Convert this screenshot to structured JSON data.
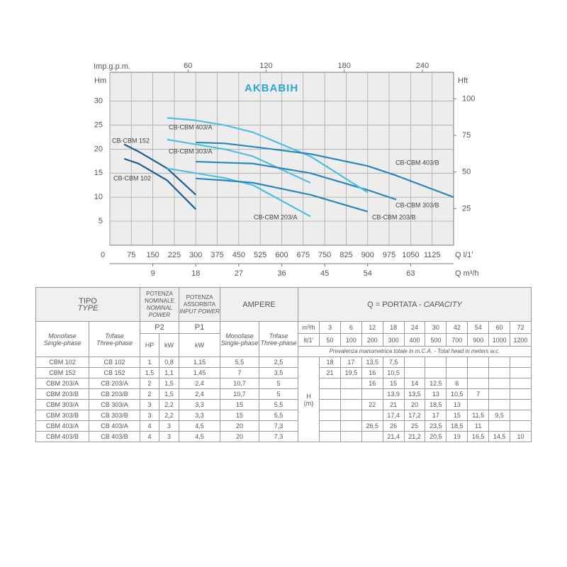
{
  "logo": "AKBABIH",
  "chart_data": {
    "type": "line",
    "x_label": "Q l/1'",
    "x3_label": "Q m³/h",
    "x2_label": "Imp.g.p.m.",
    "y_label": "Hm",
    "y2_label": "Hft",
    "xlim": [
      0,
      1200
    ],
    "xticks": [
      0,
      75,
      150,
      225,
      300,
      375,
      450,
      525,
      600,
      675,
      750,
      825,
      900,
      975,
      1050,
      1125
    ],
    "x2lim": [
      0,
      264
    ],
    "x2ticks": [
      60,
      120,
      180,
      240
    ],
    "x3lim": [
      0,
      72
    ],
    "x3ticks": [
      9,
      18,
      27,
      36,
      45,
      54,
      63
    ],
    "ylim": [
      0,
      36
    ],
    "yticks": [
      5,
      10,
      15,
      20,
      25,
      30
    ],
    "y2lim": [
      0,
      118.1
    ],
    "y2ticks": [
      25,
      50,
      75,
      100
    ],
    "grid": true,
    "series": [
      {
        "name": "CB-CBM 102",
        "color": "#1d5f8e",
        "x": [
          50,
          100,
          200,
          300
        ],
        "values": [
          18,
          17,
          13.5,
          7.5
        ]
      },
      {
        "name": "CB-CBM 152",
        "color": "#1d5f8e",
        "x": [
          50,
          100,
          200,
          300
        ],
        "values": [
          21,
          19.5,
          16,
          10.5
        ]
      },
      {
        "name": "CB-CBM 203/A",
        "color": "#4fc0de",
        "x": [
          200,
          300,
          400,
          500,
          700
        ],
        "values": [
          16,
          15,
          14,
          12.5,
          6
        ]
      },
      {
        "name": "CB-CBM 203/B",
        "color": "#2b87bb",
        "x": [
          300,
          400,
          500,
          700,
          900
        ],
        "values": [
          13.9,
          13.5,
          13,
          10.5,
          7
        ]
      },
      {
        "name": "CB-CBM 303/A",
        "color": "#4fc0de",
        "x": [
          200,
          300,
          400,
          500,
          700
        ],
        "values": [
          22,
          21,
          20,
          18.5,
          13
        ]
      },
      {
        "name": "CB-CBM 303/B",
        "color": "#2b87bb",
        "x": [
          300,
          400,
          500,
          700,
          900,
          1000
        ],
        "values": [
          17.4,
          17.2,
          17,
          15,
          11.5,
          9.5
        ]
      },
      {
        "name": "CB-CBM 403/A",
        "color": "#4fc0de",
        "x": [
          200,
          300,
          400,
          500,
          700,
          900
        ],
        "values": [
          26.5,
          26,
          25,
          23.5,
          18.5,
          11
        ]
      },
      {
        "name": "CB-CBM 403/B",
        "color": "#2b87bb",
        "x": [
          300,
          400,
          500,
          700,
          900,
          1000,
          1200
        ],
        "values": [
          21.4,
          21.2,
          20.5,
          19,
          16.5,
          14.5,
          10
        ]
      }
    ]
  },
  "table": {
    "header": {
      "tipo": "TIPO",
      "type": "TYPE",
      "nominal_it": "POTENZA NOMINALE",
      "nominal_en": "NOMINAL POWER",
      "input_it": "POTENZA ASSORBITA",
      "input_en": "INPUT POWER",
      "ampere": "AMPERE",
      "capacity_it": "Q = PORTATA -",
      "capacity_en": "CAPACITY",
      "p2": "P2",
      "p1": "P1",
      "mono_it": "Monofase",
      "mono_en": "Single-phase",
      "tri_it": "Trifase",
      "tri_en": "Three-phase",
      "hp": "HP",
      "kw": "kW",
      "m3h": "m³/h",
      "lmin": "lt/1'",
      "head_note": "Prevalenza manometrica totale in m.C.A. - Total head in meters w.c.",
      "h": "H",
      "h_unit": "(m)"
    },
    "flow_m3h": [
      3,
      6,
      12,
      18,
      24,
      30,
      42,
      54,
      60,
      72
    ],
    "flow_lmin": [
      50,
      100,
      200,
      300,
      400,
      500,
      700,
      900,
      1000,
      1200
    ],
    "rows": [
      [
        "CBM 102",
        "CB 102",
        "1",
        "0,8",
        "1,15",
        "5,5",
        "2,5",
        "18",
        "17",
        "13,5",
        "7,5",
        null,
        null,
        null,
        null,
        null,
        null
      ],
      [
        "CBM 152",
        "CB 152",
        "1,5",
        "1,1",
        "1,45",
        "7",
        "3,5",
        "21",
        "19,5",
        "16",
        "10,5",
        null,
        null,
        null,
        null,
        null,
        null
      ],
      [
        "CBM 203/A",
        "CB 203/A",
        "2",
        "1,5",
        "2,4",
        "10,7",
        "5",
        null,
        null,
        "16",
        "15",
        "14",
        "12,5",
        "6",
        null,
        null,
        null
      ],
      [
        "CBM 203/B",
        "CB 203/B",
        "2",
        "1,5",
        "2,4",
        "10,7",
        "5",
        null,
        null,
        null,
        "13,9",
        "13,5",
        "13",
        "10,5",
        "7",
        null,
        null
      ],
      [
        "CBM 303/A",
        "CB 303/A",
        "3",
        "2,2",
        "3,3",
        "15",
        "5,5",
        null,
        null,
        "22",
        "21",
        "20",
        "18,5",
        "13",
        null,
        null,
        null
      ],
      [
        "CBM 303/B",
        "CB 303/B",
        "3",
        "2,2",
        "3,3",
        "15",
        "5,5",
        null,
        null,
        null,
        "17,4",
        "17,2",
        "17",
        "15",
        "11,5",
        "9,5",
        null
      ],
      [
        "CBM 403/A",
        "CB 403/A",
        "4",
        "3",
        "4,5",
        "20",
        "7,3",
        null,
        null,
        "26,5",
        "26",
        "25",
        "23,5",
        "18,5",
        "11",
        null,
        null
      ],
      [
        "CBM 403/B",
        "CB 403/B",
        "4",
        "3",
        "4,5",
        "20",
        "7,3",
        null,
        null,
        null,
        "21,4",
        "21,2",
        "20,5",
        "19",
        "16,5",
        "14,5",
        "10"
      ]
    ]
  }
}
